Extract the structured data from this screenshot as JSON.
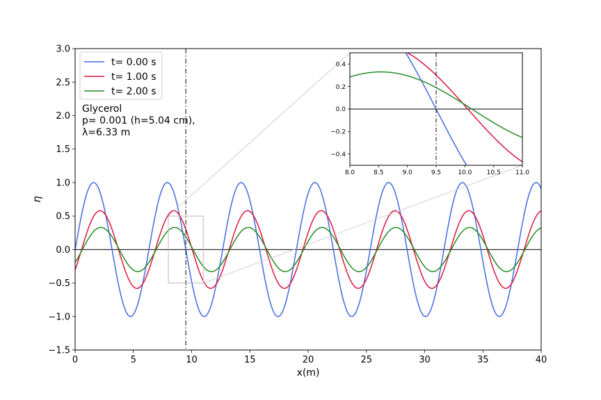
{
  "chart_data": [
    {
      "type": "line",
      "xlabel": "x(m)",
      "ylabel": "η",
      "xlim": [
        0,
        40
      ],
      "ylim": [
        -1.5,
        3.0
      ],
      "xticks": [
        0,
        5,
        10,
        15,
        20,
        25,
        30,
        35,
        40
      ],
      "xtick_labels": [
        "0",
        "5",
        "10",
        "15",
        "20",
        "25",
        "30",
        "35",
        "40"
      ],
      "yticks": [
        -1.5,
        -1.0,
        -0.5,
        0.0,
        0.5,
        1.0,
        1.5,
        2.0,
        2.5,
        3.0
      ],
      "ytick_labels": [
        "−1.5",
        "−1.0",
        "−0.5",
        "0.0",
        "0.5",
        "1.0",
        "1.5",
        "2.0",
        "2.5",
        "3.0"
      ],
      "grid": false,
      "legend_position": "top-left",
      "annotation": {
        "lines": [
          "Glycerol",
          "p= 0.001 (h=5.04 cm),",
          "λ=6.33 m"
        ]
      },
      "vertical_line_x": 9.5,
      "zero_line": true,
      "inset_box": {
        "x": [
          8.0,
          11.0
        ],
        "y": [
          -0.5,
          0.5
        ]
      },
      "series": [
        {
          "name": "t= 0.00 s",
          "color": "#4169e1",
          "amplitude": 1.0,
          "wavelength": 6.33,
          "phase_zero_x": 9.5,
          "x": [
            0,
            1.58,
            3.17,
            4.75,
            6.33,
            7.91,
            9.5,
            11.08,
            12.66,
            14.24,
            15.83,
            17.41,
            18.99,
            20.57,
            22.16,
            23.74,
            25.32,
            26.9,
            28.49,
            30.07,
            31.65,
            33.23,
            34.82,
            36.4,
            37.98,
            39.56,
            40
          ],
          "y": [
            0.0,
            1.0,
            0.0,
            -1.0,
            0.0,
            1.0,
            0.0,
            -1.0,
            0.0,
            1.0,
            0.0,
            -1.0,
            0.0,
            1.0,
            0.0,
            -1.0,
            0.0,
            1.0,
            0.0,
            -1.0,
            0.0,
            1.0,
            0.0,
            -1.0,
            0.0,
            1.0,
            0.93
          ]
        },
        {
          "name": "t= 1.00 s",
          "color": "#dc143c",
          "amplitude": 0.58,
          "wavelength": 6.33,
          "phase_zero_x": 10.05,
          "x": [
            0,
            1.7,
            4.85,
            8.0,
            11.16,
            14.32,
            17.48,
            20.64,
            23.8,
            26.96,
            30.12,
            33.28,
            36.44,
            39.6,
            40
          ],
          "y": [
            -0.17,
            0.58,
            -0.58,
            0.58,
            -0.58,
            0.58,
            -0.58,
            0.58,
            -0.58,
            0.58,
            -0.58,
            0.58,
            -0.58,
            0.58,
            0.58
          ]
        },
        {
          "name": "t= 2.00 s",
          "color": "#228b22",
          "amplitude": 0.33,
          "wavelength": 6.33,
          "phase_zero_x": 10.12,
          "x": [
            0,
            2.2,
            5.35,
            8.51,
            11.68,
            14.84,
            18.0,
            21.16,
            24.32,
            27.48,
            30.64,
            33.8,
            36.96,
            40
          ],
          "y": [
            -0.2,
            0.33,
            -0.33,
            0.33,
            -0.33,
            0.33,
            -0.33,
            0.33,
            -0.33,
            0.33,
            -0.33,
            0.33,
            -0.33,
            0.33
          ]
        }
      ]
    },
    {
      "type": "line",
      "role": "inset",
      "xlim": [
        8.0,
        11.0
      ],
      "ylim": [
        -0.5,
        0.5
      ],
      "xticks": [
        8.0,
        8.5,
        9.0,
        9.5,
        10.0,
        10.5,
        11.0
      ],
      "xtick_labels": [
        "8.0",
        "8.5",
        "9.0",
        "9.5",
        "10.0",
        "10.5",
        "11.0"
      ],
      "yticks": [
        -0.4,
        -0.2,
        0.0,
        0.2,
        0.4
      ],
      "ytick_labels": [
        "−0.4",
        "−0.2",
        "0.0",
        "0.2",
        "0.4"
      ],
      "vertical_line_x": 9.5,
      "zero_line": true
    }
  ]
}
